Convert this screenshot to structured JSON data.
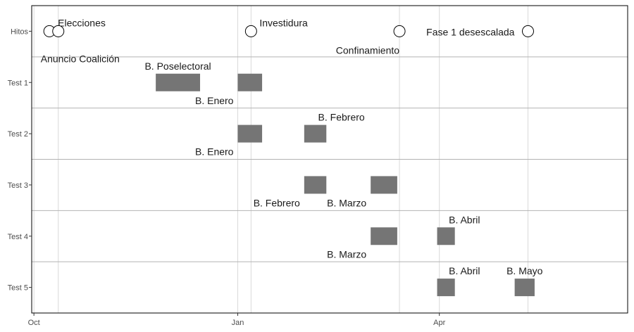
{
  "chart_data": {
    "type": "timeline",
    "x_range": [
      "2019-09-30",
      "2020-06-25"
    ],
    "x_ticks": [
      {
        "date": "2019-10-01",
        "label": "Oct"
      },
      {
        "date": "2020-01-01",
        "label": "Jan"
      },
      {
        "date": "2020-04-01",
        "label": "Apr"
      }
    ],
    "rows": [
      "Hitos",
      "Test 1",
      "Test 2",
      "Test 3",
      "Test 4",
      "Test 5"
    ],
    "milestones": [
      {
        "date": "2019-10-08",
        "label": "Elecciones",
        "label_pos": "above-right"
      },
      {
        "date": "2019-10-12",
        "label": "Anuncio Coalición",
        "label_pos": "below-right"
      },
      {
        "date": "2020-01-07",
        "label": "Investidura",
        "label_pos": "above-right"
      },
      {
        "date": "2020-03-14",
        "label": "Confinamiento",
        "label_pos": "below-left"
      },
      {
        "date": "2020-05-11",
        "label": "Fase 1 desescalada",
        "label_pos": "above-left"
      }
    ],
    "vertical_lines": [
      "2019-10-12",
      "2020-01-07",
      "2020-03-14",
      "2020-05-11"
    ],
    "bars": [
      {
        "row": "Test 1",
        "start": "2019-11-25",
        "end": "2019-12-15",
        "label": "B. Poselectoral",
        "label_pos": "above"
      },
      {
        "row": "Test 1",
        "start": "2020-01-01",
        "end": "2020-01-12",
        "label": "B. Enero",
        "label_pos": "below-left"
      },
      {
        "row": "Test 2",
        "start": "2020-01-01",
        "end": "2020-01-12",
        "label": "B. Enero",
        "label_pos": "below-left"
      },
      {
        "row": "Test 2",
        "start": "2020-01-31",
        "end": "2020-02-10",
        "label": "B. Febrero",
        "label_pos": "above-right"
      },
      {
        "row": "Test 3",
        "start": "2020-01-31",
        "end": "2020-02-10",
        "label": "B. Febrero",
        "label_pos": "below-left"
      },
      {
        "row": "Test 3",
        "start": "2020-03-01",
        "end": "2020-03-13",
        "label": "B. Marzo",
        "label_pos": "below-left"
      },
      {
        "row": "Test 4",
        "start": "2020-03-01",
        "end": "2020-03-13",
        "label": "B. Marzo",
        "label_pos": "below-left"
      },
      {
        "row": "Test 4",
        "start": "2020-03-31",
        "end": "2020-04-08",
        "label": "B. Abril",
        "label_pos": "above-right"
      },
      {
        "row": "Test 5",
        "start": "2020-03-31",
        "end": "2020-04-08",
        "label": "B. Abril",
        "label_pos": "above-right"
      },
      {
        "row": "Test 5",
        "start": "2020-05-05",
        "end": "2020-05-14",
        "label": "B. Mayo",
        "label_pos": "above"
      }
    ],
    "colors": {
      "bar": "#757575",
      "gridline": "#d9d9d9",
      "row_separator": "#b3b3b3",
      "axis": "#000000",
      "milestone_fill": "#ffffff",
      "milestone_stroke": "#000000",
      "tick_label": "#4d4d4d",
      "annotation": "#1a1a1a"
    },
    "grid": true,
    "legend": "none"
  }
}
